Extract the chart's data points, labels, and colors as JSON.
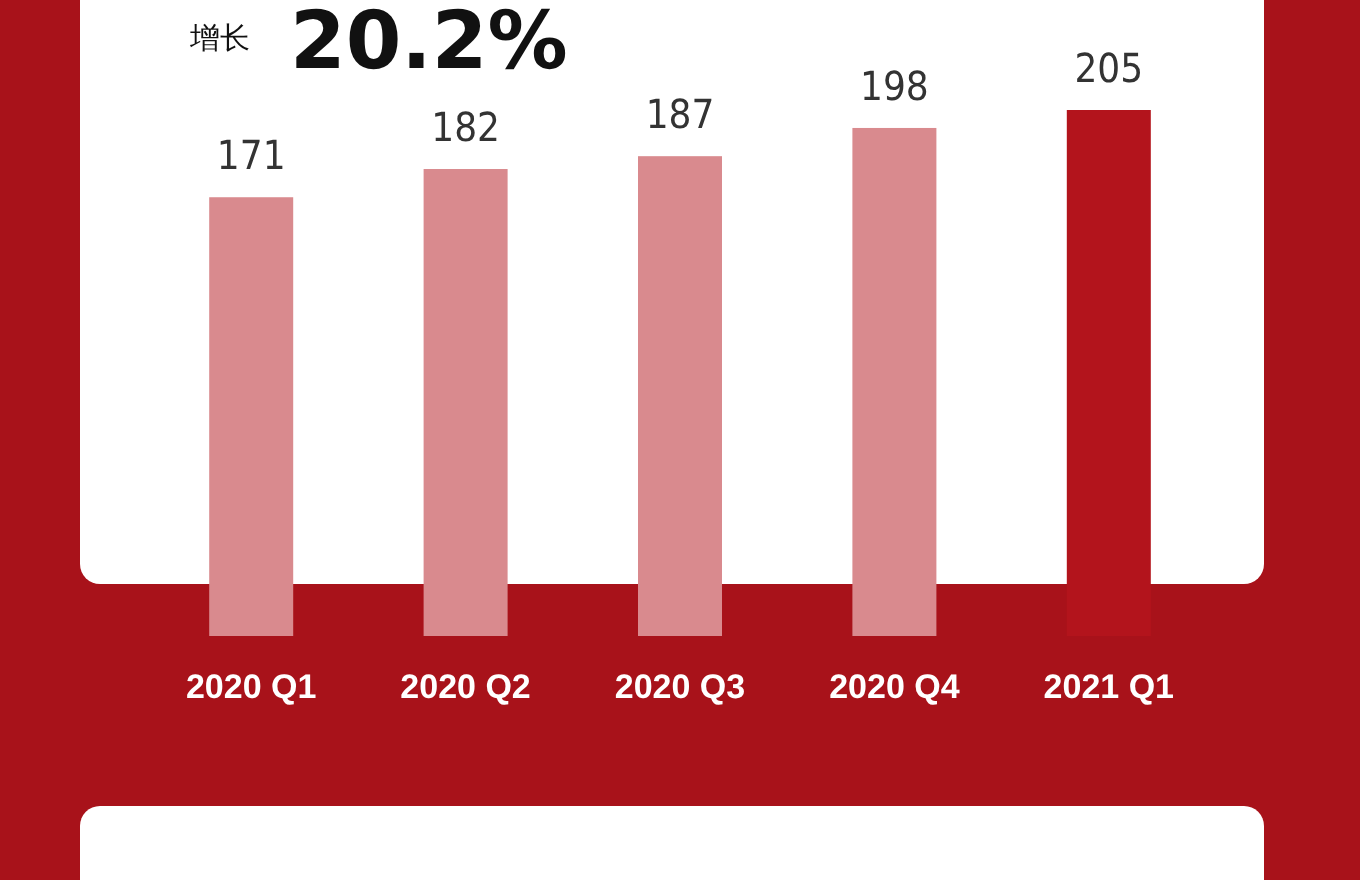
{
  "chart_data": {
    "type": "bar",
    "categories": [
      "2020 Q1",
      "2020 Q2",
      "2020 Q3",
      "2020 Q4",
      "2021 Q1"
    ],
    "values": [
      171,
      182,
      187,
      198,
      205
    ],
    "colors": [
      "#d98a8e",
      "#d98a8e",
      "#d98a8e",
      "#d98a8e",
      "#b3141c"
    ],
    "data_labels": true,
    "annotations": [
      "增长",
      "20.2%"
    ]
  }
}
